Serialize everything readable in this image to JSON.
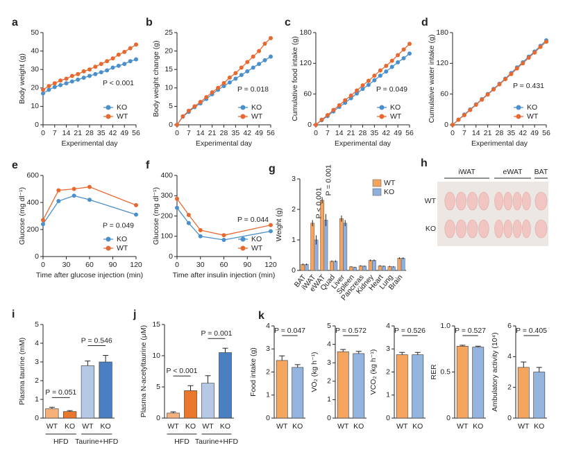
{
  "chart_data": [
    {
      "type": "line",
      "panel": "a",
      "xlabel": "Experimental day",
      "ylabel": "Body weight (g)",
      "annotation": "P < 0.001",
      "legend": "lower right",
      "x": [
        0,
        3.5,
        7,
        10.5,
        14,
        17.5,
        21,
        24.5,
        28,
        31.5,
        35,
        38.5,
        42,
        45.5,
        49,
        52.5,
        56
      ],
      "xlim": [
        0,
        56
      ],
      "xticks": [
        0,
        7,
        14,
        21,
        28,
        35,
        42,
        49,
        56
      ],
      "ylim": [
        0,
        50
      ],
      "yticks": [
        0,
        10,
        20,
        30,
        40,
        50
      ],
      "series": [
        {
          "name": "KO",
          "color": "#4b8fcd",
          "values": [
            17,
            19,
            20.5,
            21.5,
            22.5,
            23.5,
            24.5,
            25.5,
            26.5,
            27.5,
            28.5,
            29.5,
            31,
            32,
            33,
            34.5,
            35.5
          ]
        },
        {
          "name": "WT",
          "color": "#e8692f",
          "values": [
            19,
            21,
            22.5,
            24,
            25,
            26.5,
            27.5,
            29,
            30,
            31.5,
            33,
            34.5,
            36,
            38,
            39.5,
            41.5,
            43.5
          ]
        }
      ]
    },
    {
      "type": "line",
      "panel": "b",
      "xlabel": "Experimental day",
      "ylabel": "Body weight change (g)",
      "annotation": "P = 0.018",
      "legend": "lower right",
      "x": [
        0,
        3.5,
        7,
        10.5,
        14,
        17.5,
        21,
        24.5,
        28,
        31.5,
        35,
        38.5,
        42,
        45.5,
        49,
        52.5,
        56
      ],
      "xlim": [
        0,
        56
      ],
      "xticks": [
        0,
        7,
        14,
        21,
        28,
        35,
        42,
        49,
        56
      ],
      "ylim": [
        0,
        25
      ],
      "yticks": [
        0,
        5,
        10,
        15,
        20,
        25
      ],
      "series": [
        {
          "name": "KO",
          "color": "#4b8fcd",
          "values": [
            0,
            2.2,
            3.5,
            4.8,
            5.8,
            7,
            8.3,
            9.5,
            10.5,
            11.5,
            12.5,
            13.5,
            14.5,
            15.5,
            16.5,
            17.5,
            18.5
          ]
        },
        {
          "name": "WT",
          "color": "#e8692f",
          "values": [
            0,
            2.3,
            3.8,
            5,
            6.2,
            7.5,
            8.8,
            10,
            11.3,
            12.8,
            14,
            15.5,
            17,
            18.5,
            20,
            22,
            23.5
          ]
        }
      ]
    },
    {
      "type": "line",
      "panel": "c",
      "xlabel": "Experimental day",
      "ylabel": "Cumulative food intake (g)",
      "annotation": "P = 0.049",
      "legend": "lower right",
      "x": [
        0,
        3.5,
        7,
        10.5,
        14,
        17.5,
        21,
        24.5,
        28,
        31.5,
        35,
        38.5,
        42,
        45.5,
        49,
        52.5,
        56
      ],
      "xlim": [
        0,
        56
      ],
      "xticks": [
        0,
        7,
        14,
        21,
        28,
        35,
        42,
        49,
        56
      ],
      "ylim": [
        0,
        180
      ],
      "yticks": [
        0,
        60,
        120,
        180
      ],
      "series": [
        {
          "name": "KO",
          "color": "#4b8fcd",
          "values": [
            0,
            9,
            17,
            26,
            35,
            43,
            52,
            61,
            70,
            78,
            87,
            96,
            104,
            113,
            122,
            130,
            139
          ]
        },
        {
          "name": "WT",
          "color": "#e8692f",
          "values": [
            0,
            10,
            19,
            29,
            38,
            48,
            57,
            67,
            77,
            86,
            96,
            106,
            115,
            125,
            136,
            147,
            158
          ]
        }
      ]
    },
    {
      "type": "line",
      "panel": "d",
      "xlabel": "Experimental day",
      "ylabel": "Cumulative water intake (g)",
      "annotation": "P = 0.431",
      "legend": "lower right",
      "x": [
        0,
        3.5,
        7,
        10.5,
        14,
        17.5,
        21,
        24.5,
        28,
        31.5,
        35,
        38.5,
        42,
        45.5,
        49,
        52.5,
        56
      ],
      "xlim": [
        0,
        56
      ],
      "xticks": [
        0,
        7,
        14,
        21,
        28,
        35,
        42,
        49,
        56
      ],
      "ylim": [
        0,
        180
      ],
      "yticks": [
        0,
        60,
        120,
        180
      ],
      "series": [
        {
          "name": "KO",
          "color": "#4b8fcd",
          "values": [
            0,
            10,
            20,
            30,
            40,
            50,
            60,
            70,
            80,
            90,
            101,
            112,
            122,
            133,
            143,
            154,
            165
          ]
        },
        {
          "name": "WT",
          "color": "#e8692f",
          "values": [
            0,
            10,
            19,
            29,
            39,
            49,
            59,
            69,
            79,
            89,
            99,
            110,
            120,
            131,
            141,
            152,
            162
          ]
        }
      ]
    },
    {
      "type": "line",
      "panel": "e",
      "xlabel": "Time after glucose injection (min)",
      "ylabel": "Glucose (mg dl⁻¹)",
      "annotation": "P = 0.049",
      "legend": "lower right",
      "x": [
        0,
        20,
        40,
        60,
        120
      ],
      "xlim": [
        0,
        120
      ],
      "xticks": [
        0,
        30,
        60,
        90,
        120
      ],
      "ylim": [
        0,
        600
      ],
      "yticks": [
        0,
        200,
        400,
        600
      ],
      "series": [
        {
          "name": "KO",
          "color": "#4b8fcd",
          "values": [
            240,
            410,
            450,
            420,
            310
          ]
        },
        {
          "name": "WT",
          "color": "#e8692f",
          "values": [
            270,
            490,
            500,
            515,
            380
          ]
        }
      ]
    },
    {
      "type": "line",
      "panel": "f",
      "xlabel": "Time after insulin injection (min)",
      "ylabel": "Glucose (mg dl⁻¹)",
      "annotation": "P = 0.044",
      "legend": "lower right",
      "x": [
        0,
        15,
        30,
        60,
        120
      ],
      "xlim": [
        0,
        120
      ],
      "xticks": [
        0,
        30,
        60,
        90,
        120
      ],
      "ylim": [
        0,
        400
      ],
      "yticks": [
        0,
        100,
        200,
        300,
        400
      ],
      "series": [
        {
          "name": "KO",
          "color": "#4b8fcd",
          "values": [
            240,
            165,
            100,
            82,
            125
          ]
        },
        {
          "name": "WT",
          "color": "#e8692f",
          "values": [
            285,
            205,
            130,
            105,
            155
          ]
        }
      ]
    },
    {
      "type": "groupedbar",
      "panel": "g",
      "ylabel": "Weight (g)",
      "legend": "upper right",
      "annotations": [
        "P < 0.001",
        "P = 0.001"
      ],
      "categories": [
        "BAT",
        "iWAT",
        "eWAT",
        "Quad",
        "Liver",
        "Spleen",
        "Pancreas",
        "Kidney",
        "Heart",
        "Lung",
        "Brain"
      ],
      "ylim": [
        0,
        3
      ],
      "yticks": [
        0,
        1,
        2,
        3
      ],
      "series": [
        {
          "name": "WT",
          "color": "#f5a35e",
          "values": [
            0.2,
            1.55,
            2.3,
            0.3,
            1.7,
            0.12,
            0.15,
            0.33,
            0.15,
            0.13,
            0.4
          ],
          "errors": [
            0.03,
            0.1,
            0.1,
            0.03,
            0.1,
            0.02,
            0.02,
            0.03,
            0.02,
            0.02,
            0.03
          ]
        },
        {
          "name": "KO",
          "color": "#8fb0dc",
          "values": [
            0.2,
            1.0,
            1.65,
            0.3,
            1.55,
            0.1,
            0.14,
            0.33,
            0.14,
            0.12,
            0.4
          ],
          "errors": [
            0.03,
            0.15,
            0.2,
            0.03,
            0.1,
            0.02,
            0.02,
            0.03,
            0.02,
            0.02,
            0.03
          ]
        }
      ]
    },
    {
      "type": "photo",
      "panel": "h",
      "column_labels": [
        "iWAT",
        "eWAT",
        "BAT"
      ],
      "row_labels": [
        "WT",
        "KO"
      ]
    },
    {
      "type": "bar",
      "panel": "i",
      "ylabel": "Plasma taurine (mM)",
      "categories": [
        "WT",
        "KO",
        "WT",
        "KO"
      ],
      "groups": [
        "HFD",
        "Taurine+HFD"
      ],
      "annotations": [
        "P = 0.051",
        "P = 0.546"
      ],
      "values": [
        0.5,
        0.35,
        2.8,
        3.0
      ],
      "errors": [
        0.08,
        0.05,
        0.25,
        0.35
      ],
      "colors": [
        "#f6b07a",
        "#e9782c",
        "#b5c9e6",
        "#4a7fc1"
      ],
      "ylim": [
        0,
        5
      ],
      "yticks": [
        0,
        1,
        2,
        3,
        4,
        5
      ]
    },
    {
      "type": "bar",
      "panel": "j",
      "ylabel": "Plasma N-acetyltaurine (μM)",
      "categories": [
        "WT",
        "KO",
        "WT",
        "KO"
      ],
      "groups": [
        "HFD",
        "Taurine+HFD"
      ],
      "annotations": [
        "P < 0.001",
        "P = 0.001"
      ],
      "values": [
        0.8,
        4.4,
        5.6,
        10.5
      ],
      "errors": [
        0.2,
        0.8,
        1.2,
        0.7
      ],
      "colors": [
        "#f6b07a",
        "#e9782c",
        "#b5c9e6",
        "#4a7fc1"
      ],
      "ylim": [
        0,
        15
      ],
      "yticks": [
        0,
        5,
        10,
        15
      ]
    },
    {
      "type": "bar",
      "panel": "k",
      "ylabel": "Food intake (g)",
      "categories": [
        "WT",
        "KO"
      ],
      "annotation": "P = 0.047",
      "values": [
        2.5,
        2.2
      ],
      "errors": [
        0.2,
        0.12
      ],
      "colors": [
        "#f6a55f",
        "#93b4de"
      ],
      "ylim": [
        0,
        4
      ],
      "yticks": [
        0,
        1,
        2,
        3,
        4
      ]
    },
    {
      "type": "bar",
      "ylabel": "VO₂ (kg h⁻¹)",
      "categories": [
        "WT",
        "KO"
      ],
      "annotation": "P = 0.572",
      "values": [
        3.6,
        3.5
      ],
      "errors": [
        0.12,
        0.12
      ],
      "colors": [
        "#f6a55f",
        "#93b4de"
      ],
      "ylim": [
        0,
        5
      ],
      "yticks": [
        0,
        1,
        2,
        3,
        4,
        5
      ]
    },
    {
      "type": "bar",
      "ylabel": "VCO₂ (kg h⁻¹)",
      "categories": [
        "WT",
        "KO"
      ],
      "annotation": "P = 0.526",
      "values": [
        2.75,
        2.75
      ],
      "errors": [
        0.1,
        0.1
      ],
      "colors": [
        "#f6a55f",
        "#93b4de"
      ],
      "ylim": [
        0,
        4
      ],
      "yticks": [
        0,
        1,
        2,
        3,
        4
      ]
    },
    {
      "type": "bar",
      "ylabel": "RER",
      "categories": [
        "WT",
        "KO"
      ],
      "annotation": "P = 0.527",
      "values": [
        0.78,
        0.77
      ],
      "errors": [
        0.01,
        0.01
      ],
      "colors": [
        "#f6a55f",
        "#93b4de"
      ],
      "ylim": [
        0,
        1
      ],
      "yticks": [
        0,
        0.5,
        {
          "value": 1,
          "label": "1.0"
        }
      ]
    },
    {
      "type": "bar",
      "ylabel": "Ambulatory activity (10⁴)",
      "categories": [
        "WT",
        "KO"
      ],
      "annotation": "P = 0.405",
      "values": [
        3.3,
        3.0
      ],
      "errors": [
        0.35,
        0.3
      ],
      "colors": [
        "#f6a55f",
        "#93b4de"
      ],
      "ylim": [
        0,
        6
      ],
      "yticks": [
        0,
        2,
        4,
        6
      ]
    }
  ]
}
